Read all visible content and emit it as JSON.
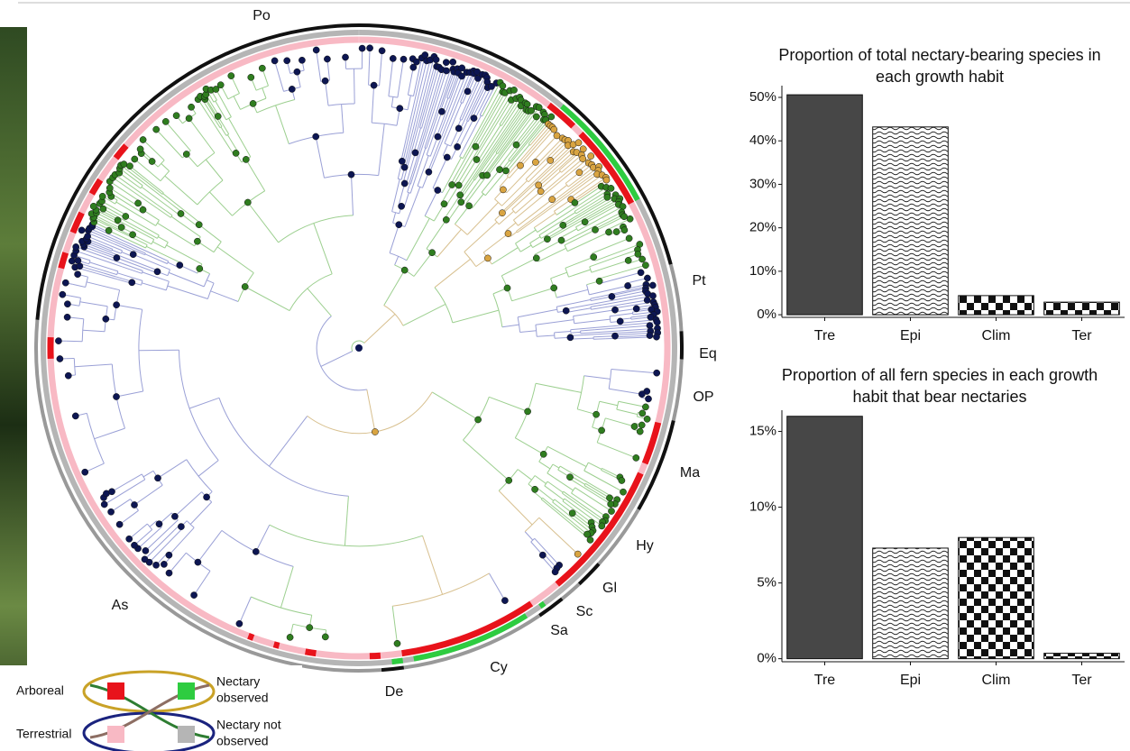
{
  "tree": {
    "clade_labels": [
      "Po",
      "Pt",
      "Eq",
      "OP",
      "Ma",
      "Hy",
      "Gl",
      "Sc",
      "Sa",
      "Cy",
      "De",
      "As"
    ]
  },
  "legend": {
    "rows": [
      "Arboreal",
      "Terrestrial"
    ],
    "columns": [
      [
        "Nectary",
        "observed"
      ],
      [
        "Nectary not",
        "observed"
      ]
    ]
  },
  "chart_data": [
    {
      "type": "bar",
      "title": "Proportion of total nectary-bearing species in each growth habit",
      "categories": [
        "Tre",
        "Epi",
        "Clim",
        "Ter"
      ],
      "values": [
        50.6,
        43.2,
        4.4,
        2.9
      ],
      "ylim": [
        -0.6,
        52.7
      ],
      "yticks": [
        {
          "value": 0,
          "label": "0%"
        },
        {
          "value": 10,
          "label": "10%"
        },
        {
          "value": 20,
          "label": "20%"
        },
        {
          "value": 30,
          "label": "30%"
        },
        {
          "value": 40,
          "label": "40%"
        },
        {
          "value": 50,
          "label": "50%"
        }
      ],
      "bar_fills": [
        "#474747",
        "waves",
        "checks",
        "checks"
      ]
    },
    {
      "type": "bar",
      "title": "Proportion of all fern species in each growth habit that bear nectaries",
      "categories": [
        "Tre",
        "Epi",
        "Clim",
        "Ter"
      ],
      "values": [
        16,
        7.3,
        8.0,
        0.36
      ],
      "ylim": [
        -0.2,
        16.4
      ],
      "yticks": [
        {
          "value": 0,
          "label": "0%"
        },
        {
          "value": 5,
          "label": "5%"
        },
        {
          "value": 10,
          "label": "10%"
        },
        {
          "value": 15,
          "label": "15%"
        }
      ],
      "bar_fills": [
        "#474747",
        "waves",
        "checks",
        "checks"
      ]
    }
  ]
}
